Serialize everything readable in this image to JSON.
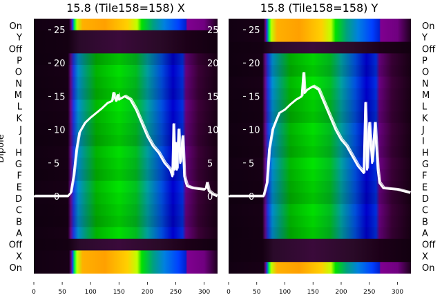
{
  "chart_data": {
    "type": "heatmap",
    "ylabel": "Dipole",
    "row_labels": [
      "On",
      "Y",
      "Off",
      "P",
      "O",
      "N",
      "M",
      "L",
      "K",
      "J",
      "I",
      "H",
      "G",
      "F",
      "E",
      "D",
      "C",
      "B",
      "A",
      "Off",
      "X",
      "On"
    ],
    "xlim": [
      0,
      323
    ],
    "x_ticks": [
      0,
      50,
      100,
      150,
      200,
      250,
      300
    ],
    "overlay_ylim": [
      -2.5,
      26.3
    ],
    "overlay_y_ticks": [
      0,
      5,
      10,
      15,
      20,
      25
    ],
    "panels": [
      {
        "title": "15.8 (Tile158=158) X",
        "row_types": [
          "on",
          "off",
          "off",
          "dipole",
          "dipole",
          "dipole",
          "dipole",
          "dipole",
          "dipole",
          "dipole",
          "dipole",
          "dipole",
          "dipole",
          "dipole",
          "dipole",
          "dipole",
          "dipole",
          "dipole",
          "dipole",
          "off",
          "on",
          "on"
        ],
        "line": {
          "x": [
            0,
            60,
            65,
            70,
            75,
            80,
            90,
            100,
            110,
            120,
            130,
            138,
            140,
            145,
            148,
            150,
            160,
            170,
            180,
            190,
            200,
            210,
            220,
            230,
            240,
            244,
            246,
            248,
            250,
            252,
            255,
            258,
            262,
            265,
            268,
            270,
            280,
            300,
            303,
            305,
            308,
            315,
            323
          ],
          "y": [
            0,
            0,
            0.5,
            3,
            7,
            9.5,
            11,
            11.8,
            12.5,
            13.2,
            14,
            14.3,
            15.5,
            14.3,
            15.2,
            14.5,
            15,
            14.5,
            13,
            11,
            9,
            7.5,
            6.5,
            5,
            4,
            3,
            10.8,
            4,
            8,
            4,
            10,
            5,
            9,
            3,
            2,
            1.5,
            1.2,
            1,
            1.2,
            2,
            0.8,
            0.3,
            0
          ]
        }
      },
      {
        "title": "15.8 (Tile158=158) Y",
        "row_types": [
          "on",
          "on",
          "off",
          "dipole",
          "dipole",
          "dipole",
          "dipole",
          "dipole",
          "dipole",
          "dipole",
          "dipole",
          "dipole",
          "dipole",
          "dipole",
          "dipole",
          "dipole",
          "dipole",
          "dipole",
          "dipole",
          "off",
          "off",
          "on"
        ],
        "line": {
          "x": [
            0,
            62,
            68,
            72,
            78,
            85,
            90,
            100,
            110,
            120,
            130,
            133,
            135,
            140,
            150,
            160,
            170,
            180,
            190,
            200,
            210,
            220,
            230,
            240,
            243,
            246,
            250,
            255,
            260,
            265,
            268,
            275,
            300,
            323
          ],
          "y": [
            0,
            0,
            2,
            7,
            10,
            11.5,
            12.5,
            13,
            13.8,
            14.5,
            15,
            18.5,
            15.5,
            16,
            16.5,
            16,
            14,
            12,
            10,
            8.5,
            7.5,
            6,
            4.5,
            3.5,
            14,
            4,
            11,
            5,
            11,
            4,
            2,
            1.2,
            1,
            0.5
          ]
        }
      }
    ],
    "colorscale": {
      "dipole": [
        [
          0,
          "#120012"
        ],
        [
          60,
          "#180016"
        ],
        [
          65,
          "#6a0a8a"
        ],
        [
          70,
          "#1a3ae6"
        ],
        [
          78,
          "#0090d0"
        ],
        [
          92,
          "#00a070"
        ],
        [
          110,
          "#00b800"
        ],
        [
          150,
          "#00e400"
        ],
        [
          180,
          "#00c020"
        ],
        [
          200,
          "#00a0a0"
        ],
        [
          225,
          "#0050e0"
        ],
        [
          245,
          "#0000d0"
        ],
        [
          262,
          "#0030e0"
        ],
        [
          268,
          "#6a0080"
        ],
        [
          290,
          "#3c0038"
        ],
        [
          323,
          "#1a0016"
        ]
      ],
      "on": [
        [
          0,
          "#120012"
        ],
        [
          62,
          "#180016"
        ],
        [
          66,
          "#6a0a8a"
        ],
        [
          68,
          "#1040f0"
        ],
        [
          72,
          "#00ff40"
        ],
        [
          76,
          "#c0ff00"
        ],
        [
          86,
          "#ffb000"
        ],
        [
          125,
          "#ffa000"
        ],
        [
          165,
          "#ffd000"
        ],
        [
          182,
          "#c0ff00"
        ],
        [
          190,
          "#00e000"
        ],
        [
          210,
          "#00a080"
        ],
        [
          230,
          "#0080e0"
        ],
        [
          255,
          "#0040ff"
        ],
        [
          268,
          "#0020d0"
        ],
        [
          270,
          "#800090"
        ],
        [
          300,
          "#700080"
        ],
        [
          323,
          "#200020"
        ]
      ],
      "off": [
        [
          0,
          "#100010"
        ],
        [
          60,
          "#140012"
        ],
        [
          80,
          "#2a0a2a"
        ],
        [
          150,
          "#3a0a3a"
        ],
        [
          220,
          "#2a0a28"
        ],
        [
          270,
          "#1c0018"
        ],
        [
          323,
          "#120010"
        ]
      ]
    }
  }
}
